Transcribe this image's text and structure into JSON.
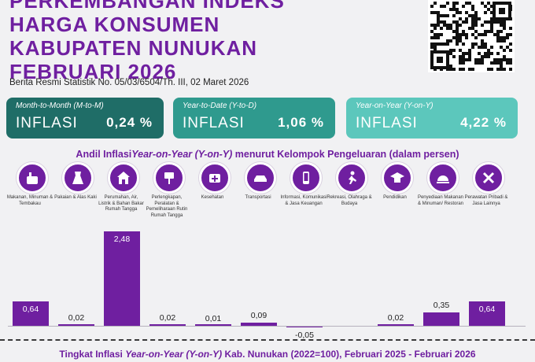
{
  "header": {
    "title_lines": [
      "PERKEMBANGAN INDEKS",
      "HARGA KONSUMEN",
      "KABUPATEN NUNUKAN",
      "FEBRUARI 2026"
    ],
    "brs": "Berita Resmi Statistik No. 05/03/6504/Th. III, 02 Maret 2026"
  },
  "cards": [
    {
      "sub": "Month-to-Month (M-to-M)",
      "label": "INFLASI",
      "value": "0,24 %",
      "color": "#1f6d67"
    },
    {
      "sub": "Year-to-Date (Y-to-D)",
      "label": "INFLASI",
      "value": "1,06 %",
      "color": "#2f9a8e"
    },
    {
      "sub": "Year-on-Year (Y-on-Y)",
      "label": "INFLASI",
      "value": "4,22 %",
      "color": "#5cc7bc"
    }
  ],
  "section": {
    "a": "Andil Inflasi",
    "b": "Year-on-Year (Y-on-Y)",
    "c": " menurut Kelompok Pengeluaran (dalam persen)"
  },
  "chart_data": {
    "type": "bar",
    "categories": [
      "Makanan, Minuman & Tembakau",
      "Pakaian & Alas Kaki",
      "Perumahan, Air, Listrik & Bahan Bakar Rumah Tangga",
      "Perlengkapan, Peralatan & Pemeliharaan Rutin Rumah Tangga",
      "Kesehatan",
      "Transportasi",
      "Informasi, Komunikasi & Jasa Keuangan",
      "Rekreasi, Olahraga & Budaya",
      "Pendidikan",
      "Penyediaan Makanan & Minuman/ Restoran",
      "Perawatan Pribadi & Jasa Lainnya"
    ],
    "values": [
      0.64,
      0.02,
      2.48,
      0.02,
      0.01,
      0.09,
      -0.05,
      0,
      0.02,
      0.35,
      0.64
    ],
    "value_labels": [
      "0,64",
      "0,02",
      "2,48",
      "0,02",
      "0,01",
      "0,09",
      "-0,05",
      "",
      "0,02",
      "0,35",
      "0,64"
    ],
    "icons": [
      "food-icon",
      "clothing-icon",
      "house-icon",
      "furniture-icon",
      "health-icon",
      "car-icon",
      "phone-icon",
      "sport-icon",
      "education-icon",
      "restaurant-icon",
      "personal-care-icon"
    ],
    "bar_color": "#6f1fa0"
  },
  "footer": {
    "a": "Tingkat Inflasi ",
    "b": "Year-on-Year (Y-on-Y)",
    "c": " Kab. Nunukan (2022=100), Februari 2025 - Februari 2026"
  }
}
